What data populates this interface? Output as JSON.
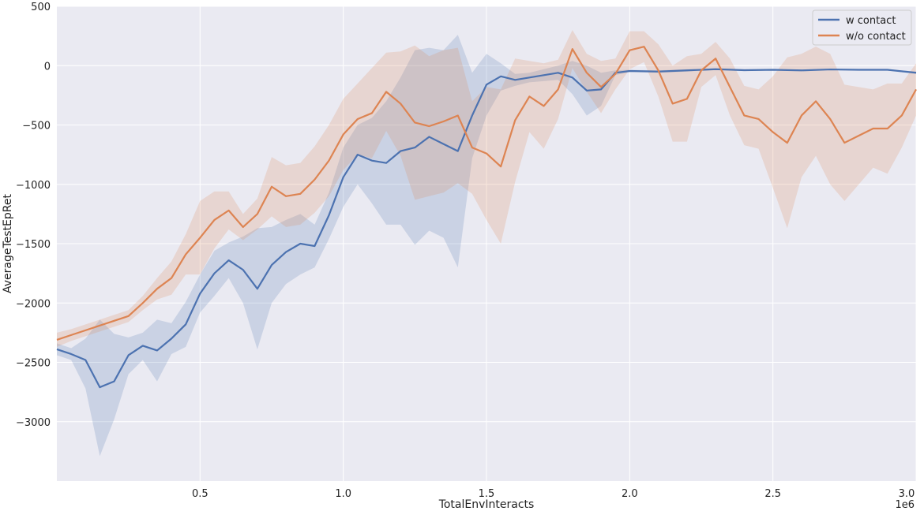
{
  "chart_data": {
    "type": "line",
    "xlabel": "TotalEnvInteracts",
    "ylabel": "AverageTestEpRet",
    "x_offset_label": "1e6",
    "xlim": [
      0,
      3000000
    ],
    "ylim": [
      -3500,
      500
    ],
    "x_scale_factor": 1000000,
    "xticks": [
      0.5,
      1.0,
      1.5,
      2.0,
      2.5,
      3.0
    ],
    "yticks": [
      500,
      0,
      -500,
      -1000,
      -1500,
      -2000,
      -2500,
      -3000
    ],
    "grid": true,
    "legend_position": "top-right",
    "background_color": "#eaeaf2",
    "series": [
      {
        "name": "w contact",
        "color": "#4c72b0",
        "points": [
          [
            0,
            -2390,
            -2340,
            -2440
          ],
          [
            50000,
            -2430,
            -2380,
            -2480
          ],
          [
            100000,
            -2480,
            -2300,
            -2720
          ],
          [
            150000,
            -2710,
            -2140,
            -3290
          ],
          [
            200000,
            -2660,
            -2260,
            -2980
          ],
          [
            250000,
            -2440,
            -2290,
            -2600
          ],
          [
            300000,
            -2360,
            -2250,
            -2480
          ],
          [
            350000,
            -2400,
            -2140,
            -2660
          ],
          [
            400000,
            -2300,
            -2170,
            -2430
          ],
          [
            450000,
            -2180,
            -1990,
            -2370
          ],
          [
            500000,
            -1920,
            -1760,
            -2080
          ],
          [
            550000,
            -1750,
            -1560,
            -1940
          ],
          [
            600000,
            -1640,
            -1490,
            -1790
          ],
          [
            650000,
            -1720,
            -1440,
            -2000
          ],
          [
            700000,
            -1880,
            -1370,
            -2390
          ],
          [
            750000,
            -1680,
            -1360,
            -2000
          ],
          [
            800000,
            -1570,
            -1300,
            -1840
          ],
          [
            850000,
            -1500,
            -1250,
            -1760
          ],
          [
            900000,
            -1520,
            -1340,
            -1700
          ],
          [
            950000,
            -1260,
            -1070,
            -1460
          ],
          [
            1000000,
            -940,
            -690,
            -1190
          ],
          [
            1050000,
            -750,
            -500,
            -1000
          ],
          [
            1100000,
            -800,
            -440,
            -1160
          ],
          [
            1150000,
            -820,
            -300,
            -1340
          ],
          [
            1200000,
            -720,
            -100,
            -1340
          ],
          [
            1250000,
            -690,
            130,
            -1510
          ],
          [
            1300000,
            -600,
            150,
            -1390
          ],
          [
            1350000,
            -660,
            130,
            -1450
          ],
          [
            1400000,
            -720,
            260,
            -1700
          ],
          [
            1450000,
            -420,
            -60,
            -780
          ],
          [
            1500000,
            -160,
            100,
            -420
          ],
          [
            1550000,
            -90,
            20,
            -210
          ],
          [
            1600000,
            -120,
            -70,
            -170
          ],
          [
            1650000,
            -100,
            -60,
            -140
          ],
          [
            1700000,
            -80,
            -30,
            -130
          ],
          [
            1750000,
            -60,
            0,
            -120
          ],
          [
            1800000,
            -100,
            40,
            -240
          ],
          [
            1850000,
            -210,
            0,
            -420
          ],
          [
            1900000,
            -200,
            -60,
            -340
          ],
          [
            1950000,
            -60,
            -40,
            -80
          ],
          [
            2000000,
            -45,
            -35,
            -55
          ],
          [
            2100000,
            -50,
            -40,
            -60
          ],
          [
            2200000,
            -40,
            -30,
            -50
          ],
          [
            2300000,
            -30,
            -25,
            -35
          ],
          [
            2400000,
            -38,
            -30,
            -46
          ],
          [
            2500000,
            -35,
            -30,
            -40
          ],
          [
            2600000,
            -40,
            -35,
            -45
          ],
          [
            2700000,
            -32,
            -28,
            -36
          ],
          [
            2800000,
            -35,
            -30,
            -40
          ],
          [
            2900000,
            -35,
            -30,
            -40
          ],
          [
            3000000,
            -60,
            -50,
            -70
          ]
        ]
      },
      {
        "name": "w/o contact",
        "color": "#dd8452",
        "points": [
          [
            0,
            -2310,
            -2250,
            -2370
          ],
          [
            50000,
            -2270,
            -2220,
            -2320
          ],
          [
            100000,
            -2230,
            -2180,
            -2280
          ],
          [
            150000,
            -2190,
            -2140,
            -2240
          ],
          [
            200000,
            -2150,
            -2100,
            -2200
          ],
          [
            250000,
            -2110,
            -2060,
            -2160
          ],
          [
            300000,
            -2000,
            -1940,
            -2060
          ],
          [
            350000,
            -1880,
            -1790,
            -1970
          ],
          [
            400000,
            -1790,
            -1650,
            -1930
          ],
          [
            450000,
            -1590,
            -1420,
            -1760
          ],
          [
            500000,
            -1450,
            -1140,
            -1760
          ],
          [
            550000,
            -1300,
            -1060,
            -1540
          ],
          [
            600000,
            -1220,
            -1060,
            -1380
          ],
          [
            650000,
            -1360,
            -1250,
            -1470
          ],
          [
            700000,
            -1250,
            -1120,
            -1380
          ],
          [
            750000,
            -1020,
            -770,
            -1270
          ],
          [
            800000,
            -1100,
            -840,
            -1360
          ],
          [
            850000,
            -1080,
            -820,
            -1340
          ],
          [
            900000,
            -960,
            -680,
            -1240
          ],
          [
            950000,
            -800,
            -500,
            -1100
          ],
          [
            1000000,
            -580,
            -280,
            -880
          ],
          [
            1050000,
            -450,
            -150,
            -750
          ],
          [
            1100000,
            -400,
            -20,
            -780
          ],
          [
            1150000,
            -220,
            110,
            -550
          ],
          [
            1200000,
            -320,
            120,
            -760
          ],
          [
            1250000,
            -480,
            170,
            -1130
          ],
          [
            1300000,
            -510,
            80,
            -1100
          ],
          [
            1350000,
            -470,
            130,
            -1070
          ],
          [
            1400000,
            -420,
            150,
            -990
          ],
          [
            1450000,
            -690,
            -300,
            -1080
          ],
          [
            1500000,
            -740,
            -180,
            -1300
          ],
          [
            1550000,
            -850,
            -200,
            -1500
          ],
          [
            1600000,
            -460,
            60,
            -980
          ],
          [
            1650000,
            -260,
            40,
            -560
          ],
          [
            1700000,
            -340,
            20,
            -700
          ],
          [
            1750000,
            -200,
            50,
            -450
          ],
          [
            1800000,
            140,
            300,
            -20
          ],
          [
            1850000,
            -60,
            100,
            -220
          ],
          [
            1900000,
            -180,
            40,
            -400
          ],
          [
            1950000,
            -70,
            60,
            -200
          ],
          [
            2000000,
            130,
            290,
            -30
          ],
          [
            2050000,
            160,
            290,
            30
          ],
          [
            2100000,
            -40,
            180,
            -260
          ],
          [
            2150000,
            -320,
            0,
            -640
          ],
          [
            2200000,
            -280,
            80,
            -640
          ],
          [
            2250000,
            -40,
            100,
            -180
          ],
          [
            2300000,
            60,
            200,
            -80
          ],
          [
            2350000,
            -180,
            60,
            -420
          ],
          [
            2400000,
            -420,
            -170,
            -670
          ],
          [
            2450000,
            -450,
            -200,
            -700
          ],
          [
            2500000,
            -560,
            -90,
            -1030
          ],
          [
            2550000,
            -650,
            70,
            -1370
          ],
          [
            2600000,
            -420,
            100,
            -940
          ],
          [
            2650000,
            -300,
            160,
            -760
          ],
          [
            2700000,
            -450,
            100,
            -1000
          ],
          [
            2750000,
            -650,
            -160,
            -1140
          ],
          [
            2800000,
            -590,
            -180,
            -1000
          ],
          [
            2850000,
            -530,
            -200,
            -860
          ],
          [
            2900000,
            -530,
            -150,
            -910
          ],
          [
            2950000,
            -420,
            -150,
            -690
          ],
          [
            3000000,
            -200,
            20,
            -420
          ]
        ]
      }
    ]
  }
}
